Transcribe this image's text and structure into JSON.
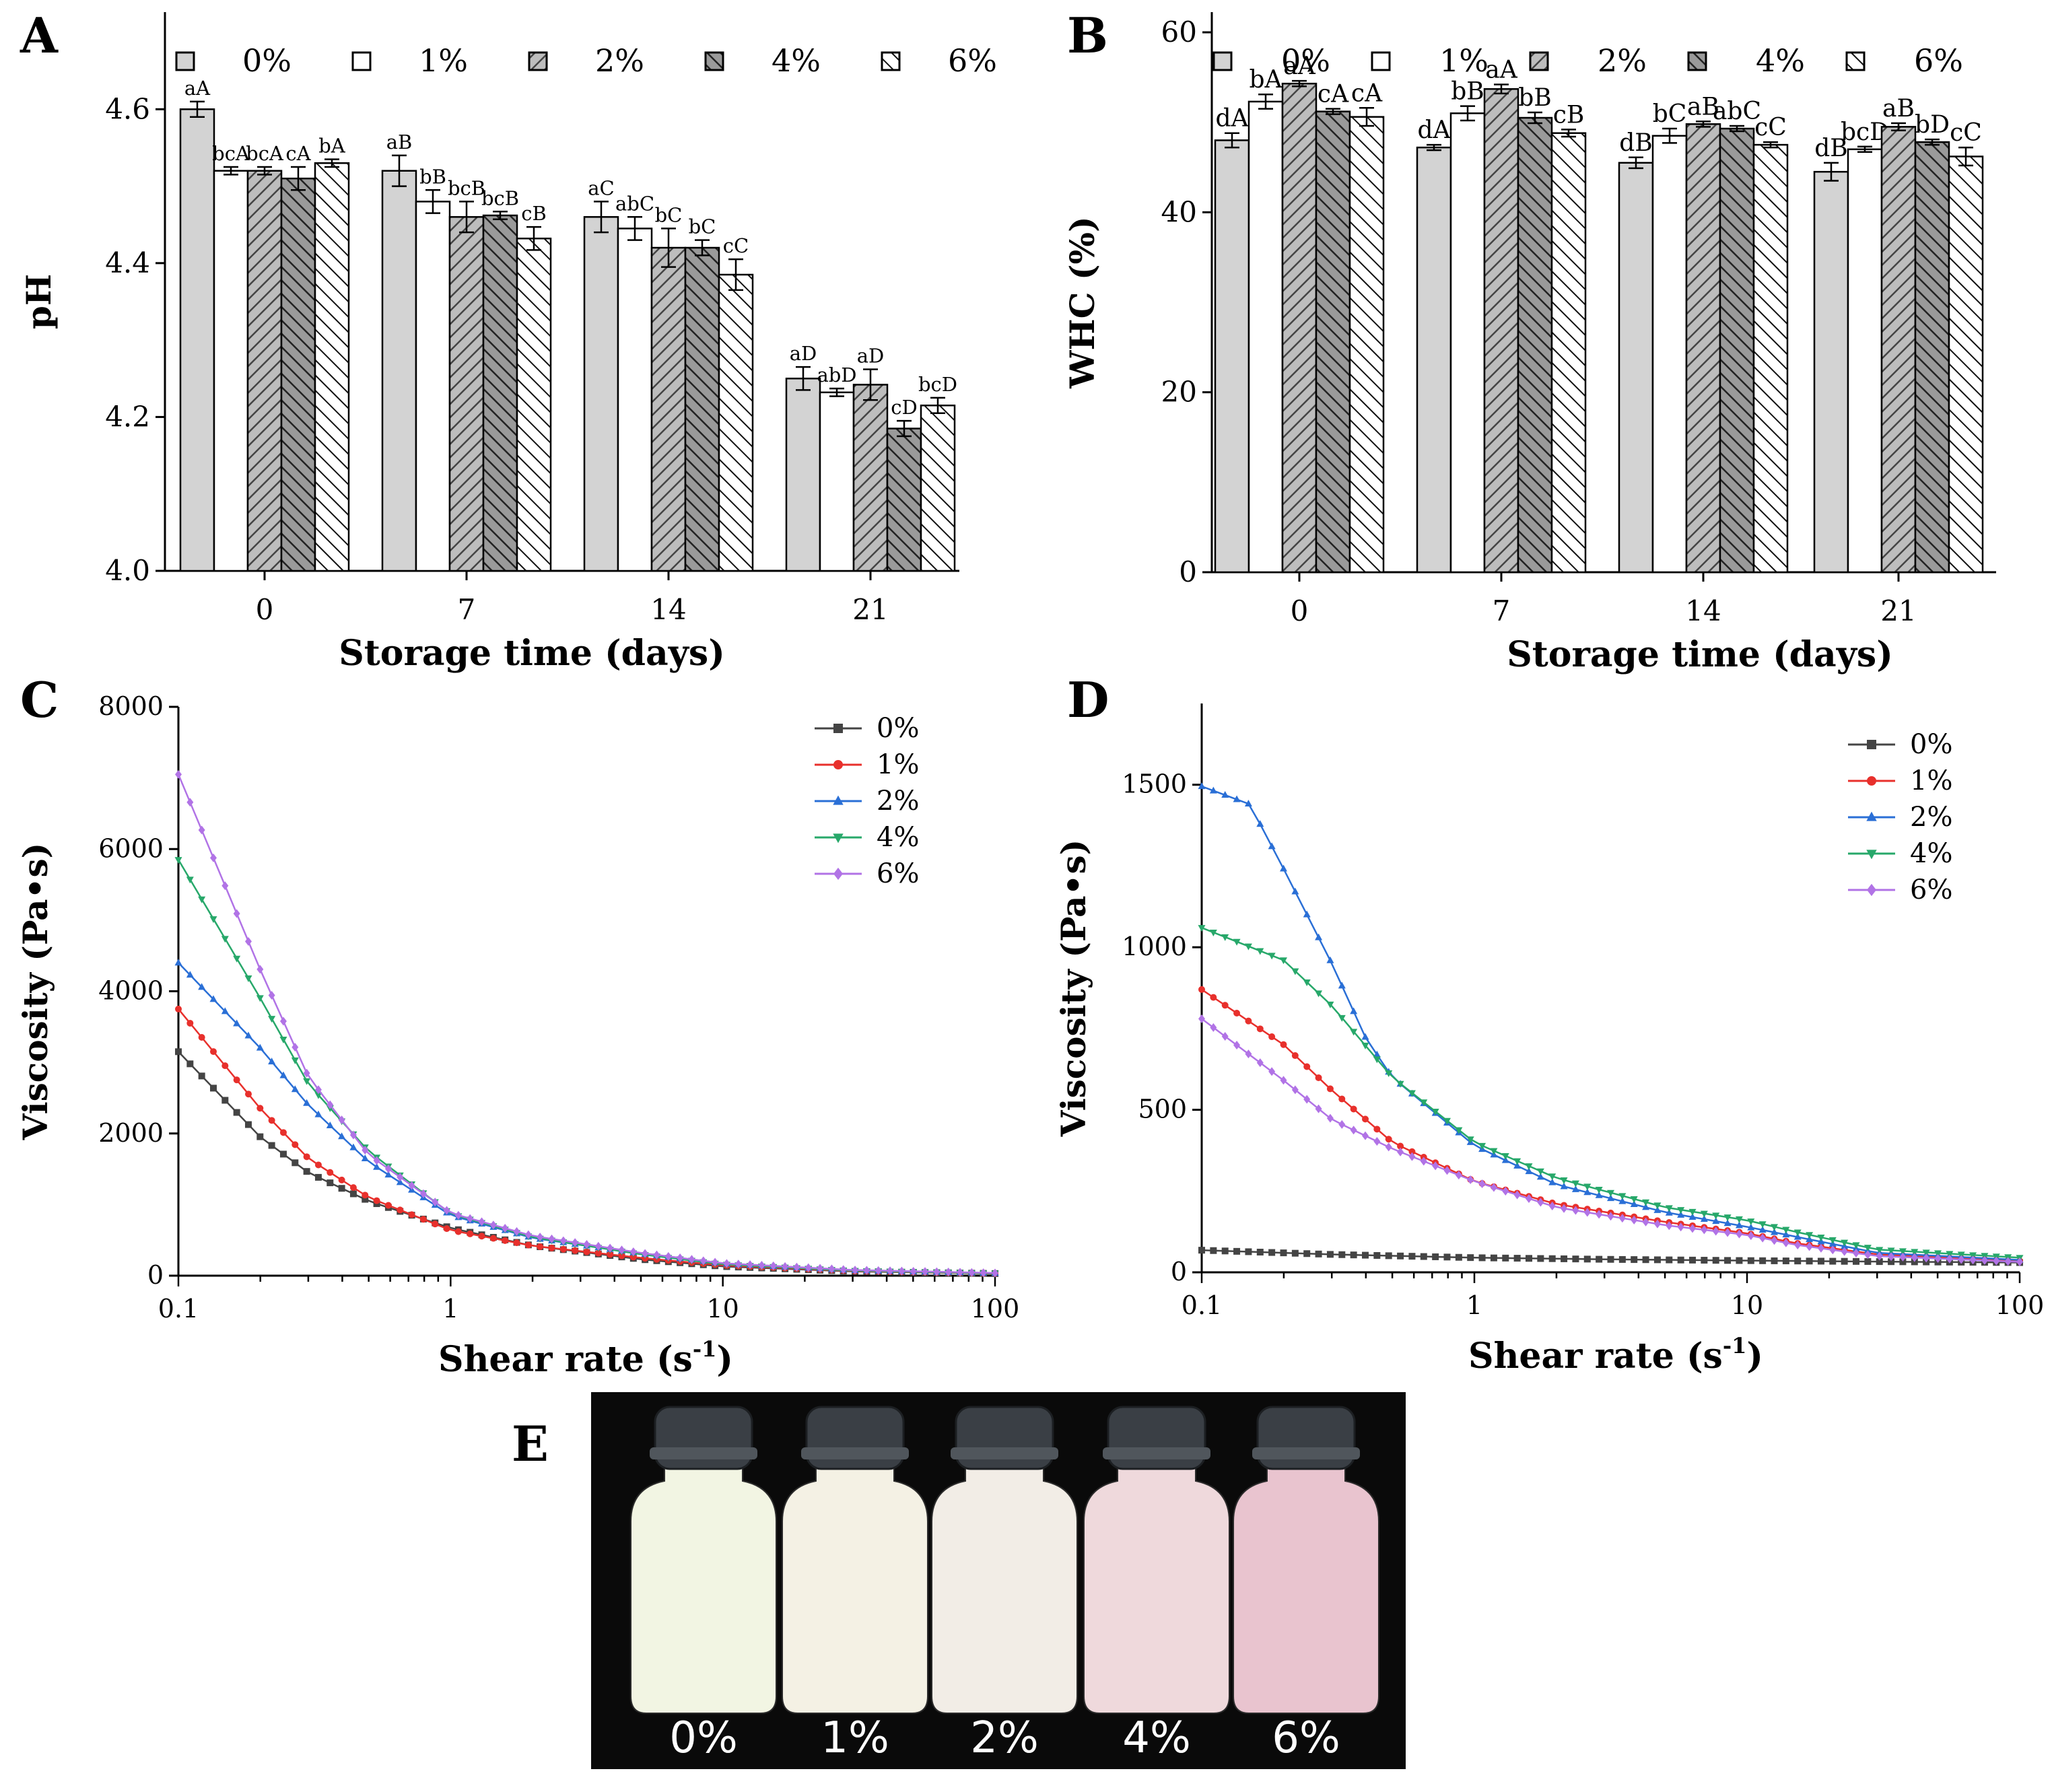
{
  "panels": {
    "A": "A",
    "B": "B",
    "C": "C",
    "D": "D",
    "E": "E"
  },
  "bar_legend": [
    "0%",
    "1%",
    "2%",
    "4%",
    "6%"
  ],
  "line_legend": [
    "0%",
    "1%",
    "2%",
    "4%",
    "6%"
  ],
  "line_colors": [
    "#444444",
    "#e8302c",
    "#2a6fd6",
    "#27a86a",
    "#b173e6"
  ],
  "photo_labels": [
    "0%",
    "1%",
    "2%",
    "4%",
    "6%"
  ],
  "bottle_colors": [
    "#f2f5e3",
    "#f4f1e4",
    "#f2ede6",
    "#efd9dc",
    "#e9c4cf"
  ],
  "chart_data": [
    {
      "id": "A",
      "type": "bar",
      "xlabel": "Storage time (days)",
      "ylabel": "pH",
      "categories": [
        "0",
        "7",
        "14",
        "21"
      ],
      "ylim": [
        4.0,
        4.7
      ],
      "yticks": [
        "4.0",
        "4.2",
        "4.4",
        "4.6"
      ],
      "series": [
        {
          "name": "0%",
          "values": [
            4.6,
            4.52,
            4.46,
            4.25
          ],
          "errors": [
            0.01,
            0.02,
            0.02,
            0.015
          ],
          "letters": [
            "aA",
            "aB",
            "aC",
            "aD"
          ]
        },
        {
          "name": "1%",
          "values": [
            4.52,
            4.48,
            4.445,
            4.232
          ],
          "errors": [
            0.005,
            0.015,
            0.015,
            0.005
          ],
          "letters": [
            "bcA",
            "bB",
            "abC",
            "abD"
          ]
        },
        {
          "name": "2%",
          "values": [
            4.52,
            4.46,
            4.42,
            4.242
          ],
          "errors": [
            0.005,
            0.02,
            0.025,
            0.02
          ],
          "letters": [
            "bcA",
            "bcB",
            "bC",
            "aD"
          ]
        },
        {
          "name": "4%",
          "values": [
            4.51,
            4.462,
            4.42,
            4.185
          ],
          "errors": [
            0.015,
            0.005,
            0.01,
            0.01
          ],
          "letters": [
            "cA",
            "bcB",
            "bC",
            "cD"
          ]
        },
        {
          "name": "6%",
          "values": [
            4.53,
            4.432,
            4.385,
            4.215
          ],
          "errors": [
            0.005,
            0.015,
            0.02,
            0.01
          ],
          "letters": [
            "bA",
            "cB",
            "cC",
            "bcD"
          ]
        }
      ]
    },
    {
      "id": "B",
      "type": "bar",
      "xlabel": "Storage time (days)",
      "ylabel": "WHC  (%)",
      "categories": [
        "0",
        "7",
        "14",
        "21"
      ],
      "ylim": [
        0,
        60
      ],
      "yticks": [
        "0",
        "20",
        "40",
        "60"
      ],
      "series": [
        {
          "name": "0%",
          "values": [
            48.0,
            47.2,
            45.5,
            44.5
          ],
          "errors": [
            0.8,
            0.3,
            0.6,
            1.0
          ],
          "letters": [
            "dA",
            "dA",
            "dB",
            "dB"
          ]
        },
        {
          "name": "1%",
          "values": [
            52.3,
            51.0,
            48.5,
            47.0
          ],
          "errors": [
            0.8,
            0.8,
            0.8,
            0.3
          ],
          "letters": [
            "bA",
            "bB",
            "bC",
            "bcD"
          ]
        },
        {
          "name": "2%",
          "values": [
            54.3,
            53.7,
            49.8,
            49.5
          ],
          "errors": [
            0.3,
            0.5,
            0.3,
            0.4
          ],
          "letters": [
            "aA",
            "aA",
            "aB",
            "aB"
          ]
        },
        {
          "name": "4%",
          "values": [
            51.2,
            50.5,
            49.3,
            47.8
          ],
          "errors": [
            0.3,
            0.6,
            0.3,
            0.3
          ],
          "letters": [
            "cA",
            "bB",
            "abC",
            "bD"
          ]
        },
        {
          "name": "6%",
          "values": [
            50.6,
            48.8,
            47.5,
            46.2
          ],
          "errors": [
            1.0,
            0.4,
            0.3,
            1.0
          ],
          "letters": [
            "cA",
            "cB",
            "cC",
            "cC"
          ]
        }
      ]
    },
    {
      "id": "C",
      "type": "line",
      "xlabel": "Shear rate (s",
      "xlabel_sup": "-1",
      "xlabel_close": ")",
      "ylabel": "Viscosity (Pa•s)",
      "xscale": "log",
      "xlim": [
        0.1,
        100
      ],
      "xticks": [
        "0.1",
        "1",
        "10",
        "100"
      ],
      "ylim": [
        0,
        8000
      ],
      "yticks": [
        "0",
        "2000",
        "4000",
        "6000",
        "8000"
      ],
      "series": [
        {
          "name": "0%",
          "marker": "square",
          "x": [
            0.1,
            0.2,
            0.3,
            0.5,
            1,
            2,
            5,
            10,
            30,
            100
          ],
          "y": [
            3150,
            1950,
            1450,
            1050,
            670,
            420,
            230,
            130,
            60,
            30
          ]
        },
        {
          "name": "1%",
          "marker": "circle",
          "x": [
            0.1,
            0.2,
            0.3,
            0.5,
            1,
            2,
            5,
            10,
            30,
            100
          ],
          "y": [
            3750,
            2350,
            1650,
            1100,
            640,
            420,
            250,
            145,
            65,
            32
          ]
        },
        {
          "name": "2%",
          "marker": "triangle-up",
          "x": [
            0.1,
            0.2,
            0.3,
            0.5,
            1,
            2,
            5,
            10,
            30,
            100
          ],
          "y": [
            4400,
            3200,
            2400,
            1600,
            850,
            530,
            310,
            170,
            75,
            35
          ]
        },
        {
          "name": "4%",
          "marker": "triangle-down",
          "x": [
            0.1,
            0.2,
            0.3,
            0.5,
            1,
            2,
            5,
            10,
            30,
            100
          ],
          "y": [
            5850,
            3900,
            2700,
            1750,
            870,
            540,
            300,
            160,
            70,
            33
          ]
        },
        {
          "name": "6%",
          "marker": "diamond",
          "x": [
            0.1,
            0.2,
            0.3,
            0.5,
            1,
            2,
            5,
            10,
            30,
            100
          ],
          "y": [
            7050,
            4300,
            2800,
            1700,
            880,
            560,
            320,
            175,
            80,
            38
          ]
        }
      ]
    },
    {
      "id": "D",
      "type": "line",
      "xlabel": "Shear rate (s",
      "xlabel_sup": "-1",
      "xlabel_close": ")",
      "ylabel": "Viscosity (Pa•s)",
      "xscale": "log",
      "xlim": [
        0.1,
        100
      ],
      "xticks": [
        "0.1",
        "1",
        "10",
        "100"
      ],
      "ylim": [
        0,
        1750
      ],
      "yticks": [
        "0",
        "500",
        "1000",
        "1500"
      ],
      "series": [
        {
          "name": "0%",
          "marker": "square",
          "x": [
            0.1,
            0.3,
            1,
            3,
            10,
            30,
            100
          ],
          "y": [
            68,
            55,
            45,
            40,
            36,
            33,
            30
          ]
        },
        {
          "name": "1%",
          "marker": "circle",
          "x": [
            0.1,
            0.2,
            0.3,
            0.5,
            1,
            2,
            5,
            10,
            15,
            30,
            100
          ],
          "y": [
            870,
            700,
            560,
            400,
            280,
            210,
            155,
            120,
            90,
            55,
            35
          ]
        },
        {
          "name": "2%",
          "marker": "triangle-up",
          "x": [
            0.1,
            0.15,
            0.2,
            0.3,
            0.4,
            0.5,
            1,
            2,
            5,
            10,
            15,
            30,
            100
          ],
          "y": [
            1495,
            1440,
            1240,
            950,
            720,
            600,
            390,
            270,
            185,
            140,
            110,
            60,
            38
          ]
        },
        {
          "name": "4%",
          "marker": "triangle-down",
          "x": [
            0.1,
            0.2,
            0.3,
            0.5,
            1,
            2,
            5,
            10,
            15,
            30,
            100
          ],
          "y": [
            1060,
            960,
            820,
            600,
            400,
            290,
            200,
            160,
            125,
            70,
            45
          ]
        },
        {
          "name": "6%",
          "marker": "diamond",
          "x": [
            0.1,
            0.2,
            0.3,
            0.5,
            1,
            2,
            5,
            10,
            15,
            30,
            100
          ],
          "y": [
            780,
            590,
            470,
            380,
            280,
            200,
            145,
            115,
            85,
            50,
            32
          ]
        }
      ]
    }
  ]
}
